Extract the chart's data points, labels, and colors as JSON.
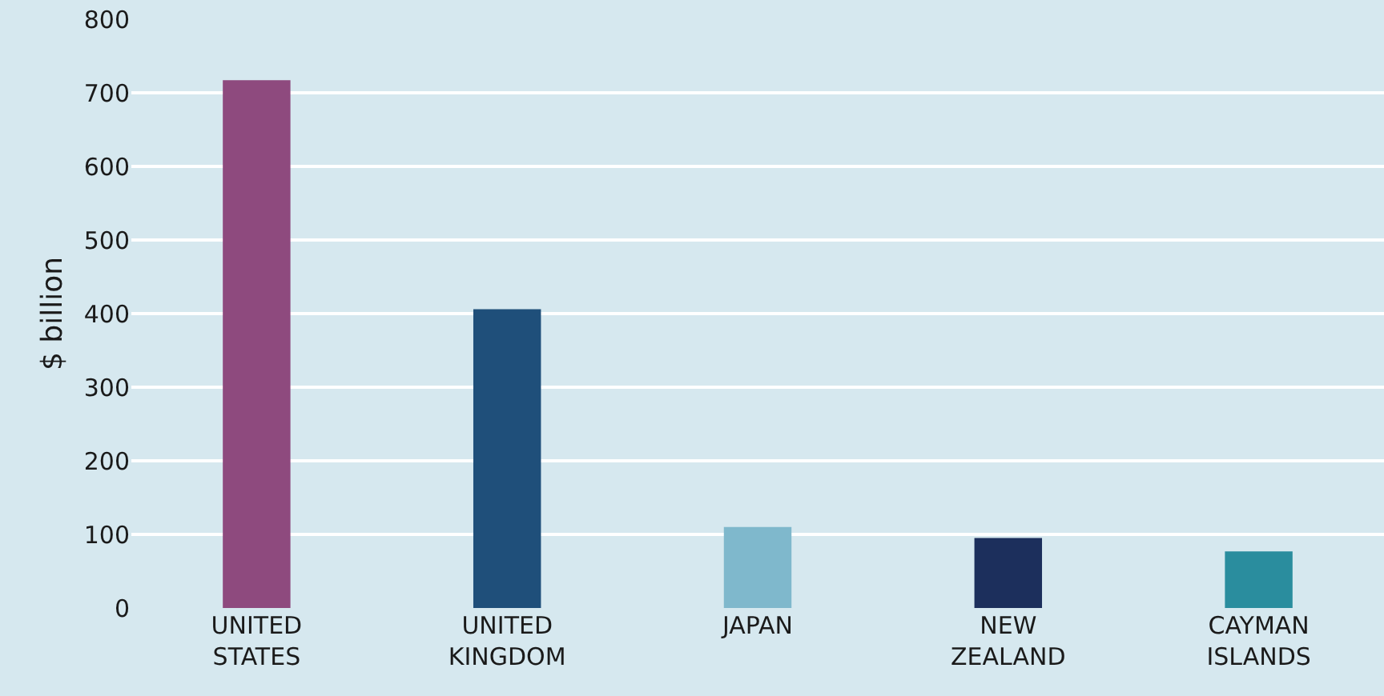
{
  "chart_data": {
    "type": "bar",
    "ylabel": "$ billion",
    "categories": [
      "UNITED STATES",
      "UNITED KINGDOM",
      "JAPAN",
      "NEW ZEALAND",
      "CAYMAN ISLANDS"
    ],
    "values": [
      717,
      406,
      110,
      95,
      77
    ],
    "colors": [
      "#8e4a7e",
      "#1f4f7a",
      "#7fb8cc",
      "#1c2f5c",
      "#2a8d9e"
    ],
    "ylim": [
      0,
      800
    ],
    "yticks": [
      0,
      100,
      200,
      300,
      400,
      500,
      600,
      700,
      800
    ],
    "grid": "y"
  }
}
